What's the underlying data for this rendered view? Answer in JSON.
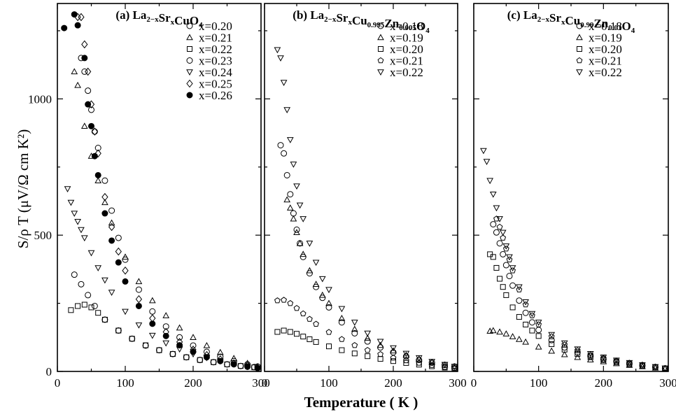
{
  "figure": {
    "ylabel": "S/ρ T (μV/Ω cm K²)",
    "xlabel": "Temperature  ( K )"
  },
  "chart_data": [
    {
      "type": "scatter",
      "title": "(a) La2−xSrxCuO4",
      "title_parts": {
        "tag": "(a)",
        "a": "La",
        "a_sub": "2−x",
        "b": "Sr",
        "b_sub": "x",
        "c": "CuO",
        "c_sub": "4"
      },
      "xlim": [
        0,
        300
      ],
      "ylim": [
        0,
        1350
      ],
      "xticks": [
        0,
        100,
        200,
        300
      ],
      "yticks": [
        0,
        500,
        1000
      ],
      "legend_position": "top-right",
      "series": [
        {
          "name": "x=0.20",
          "marker": "circle",
          "x": [
            25,
            35,
            45,
            55,
            70,
            90,
            110,
            130,
            150,
            170,
            190,
            210,
            230,
            250,
            270,
            290
          ],
          "y": [
            355,
            320,
            280,
            240,
            190,
            150,
            120,
            95,
            78,
            64,
            52,
            42,
            34,
            26,
            20,
            16
          ]
        },
        {
          "name": "x=0.21",
          "marker": "triangle-up",
          "x": [
            25,
            30,
            40,
            50,
            60,
            70,
            80,
            100,
            120,
            140,
            160,
            180,
            200,
            220,
            240,
            260,
            280,
            295
          ],
          "y": [
            1100,
            1050,
            900,
            790,
            700,
            620,
            545,
            420,
            330,
            260,
            205,
            160,
            125,
            95,
            70,
            48,
            30,
            18
          ]
        },
        {
          "name": "x=0.22",
          "marker": "square",
          "x": [
            20,
            30,
            40,
            50,
            60,
            70,
            90,
            110,
            130,
            150,
            170,
            190,
            210,
            230,
            250,
            270,
            290
          ],
          "y": [
            225,
            240,
            245,
            235,
            215,
            190,
            150,
            120,
            96,
            78,
            64,
            52,
            42,
            34,
            26,
            20,
            15
          ]
        },
        {
          "name": "x=0.23",
          "marker": "circle",
          "x": [
            35,
            40,
            45,
            50,
            55,
            60,
            70,
            80,
            90,
            100,
            120,
            140,
            160,
            180,
            200,
            220,
            240,
            260,
            280,
            295
          ],
          "y": [
            1150,
            1100,
            1030,
            960,
            880,
            820,
            700,
            590,
            490,
            410,
            300,
            220,
            165,
            125,
            95,
            72,
            54,
            38,
            26,
            18
          ]
        },
        {
          "name": "x=0.24",
          "marker": "triangle-down",
          "x": [
            15,
            20,
            25,
            30,
            35,
            40,
            50,
            60,
            70,
            80,
            100,
            120,
            140,
            160,
            180,
            200,
            220,
            240,
            260,
            280,
            295
          ],
          "y": [
            670,
            620,
            580,
            550,
            520,
            490,
            435,
            380,
            335,
            290,
            220,
            170,
            132,
            104,
            82,
            64,
            50,
            38,
            27,
            18,
            12
          ]
        },
        {
          "name": "x=0.25",
          "marker": "diamond",
          "x": [
            30,
            35,
            40,
            45,
            50,
            55,
            60,
            70,
            80,
            90,
            100,
            120,
            140,
            160,
            180,
            200,
            220,
            240,
            260,
            280,
            295
          ],
          "y": [
            1300,
            1300,
            1200,
            1100,
            980,
            880,
            800,
            640,
            530,
            440,
            370,
            265,
            195,
            145,
            108,
            80,
            60,
            44,
            30,
            20,
            14
          ]
        },
        {
          "name": "x=0.26",
          "marker": "filled-circle",
          "x": [
            10,
            25,
            30,
            40,
            45,
            50,
            55,
            60,
            70,
            80,
            90,
            100,
            120,
            140,
            160,
            180,
            200,
            220,
            240,
            260,
            280,
            295
          ],
          "y": [
            1260,
            1310,
            1270,
            1150,
            980,
            900,
            790,
            720,
            580,
            480,
            400,
            330,
            240,
            175,
            130,
            96,
            72,
            52,
            38,
            26,
            17,
            12
          ]
        }
      ]
    },
    {
      "type": "scatter",
      "title": "(b) La2−xSrxCu0.995Zn0.005O4",
      "title_parts": {
        "tag": "(b)",
        "a": "La",
        "a_sub": "2−x",
        "b": "Sr",
        "b_sub": "x",
        "c": "Cu",
        "c_sub": "0.995",
        "d": "Zn",
        "d_sub": "0.005",
        "e": "O",
        "e_sub": "4"
      },
      "xlim": [
        0,
        300
      ],
      "ylim": [
        0,
        1350
      ],
      "xticks": [
        0,
        100,
        200,
        300
      ],
      "yticks": [
        0,
        500,
        1000
      ],
      "legend_position": "top-right",
      "series": [
        {
          "name": "x=0.18",
          "marker": "circle",
          "x": [
            25,
            30,
            35,
            40,
            45,
            50,
            55,
            60,
            70,
            80,
            90,
            100,
            120,
            140,
            160,
            180,
            200,
            220,
            240,
            260,
            280,
            295
          ],
          "y": [
            830,
            800,
            720,
            650,
            580,
            520,
            470,
            420,
            360,
            310,
            270,
            235,
            180,
            140,
            110,
            88,
            70,
            55,
            42,
            32,
            24,
            18
          ]
        },
        {
          "name": "x=0.19",
          "marker": "triangle-up",
          "x": [
            35,
            40,
            45,
            50,
            55,
            60,
            70,
            80,
            90,
            100,
            120,
            140,
            160,
            180,
            200,
            220,
            240,
            260,
            280,
            295
          ],
          "y": [
            630,
            600,
            560,
            510,
            470,
            430,
            370,
            320,
            280,
            250,
            195,
            155,
            122,
            96,
            76,
            60,
            46,
            34,
            24,
            18
          ]
        },
        {
          "name": "x=0.20",
          "marker": "square",
          "x": [
            20,
            30,
            40,
            50,
            60,
            70,
            80,
            100,
            120,
            140,
            160,
            180,
            200,
            220,
            240,
            260,
            280,
            295
          ],
          "y": [
            145,
            150,
            145,
            138,
            128,
            118,
            108,
            92,
            78,
            66,
            56,
            46,
            38,
            31,
            25,
            19,
            14,
            10
          ]
        },
        {
          "name": "x=0.21",
          "marker": "pentagon",
          "x": [
            20,
            30,
            40,
            50,
            60,
            70,
            80,
            100,
            120,
            140,
            160,
            180,
            200,
            220,
            240,
            260,
            280,
            295
          ],
          "y": [
            260,
            262,
            250,
            232,
            212,
            192,
            174,
            144,
            118,
            96,
            78,
            63,
            50,
            40,
            31,
            23,
            16,
            12
          ]
        },
        {
          "name": "x=0.22",
          "marker": "triangle-down",
          "x": [
            20,
            25,
            30,
            35,
            40,
            45,
            50,
            55,
            60,
            70,
            80,
            90,
            100,
            120,
            140,
            160,
            180,
            200,
            220,
            240,
            260,
            280,
            295
          ],
          "y": [
            1180,
            1150,
            1060,
            960,
            850,
            760,
            680,
            610,
            560,
            470,
            400,
            340,
            300,
            230,
            180,
            140,
            110,
            86,
            66,
            50,
            36,
            25,
            18
          ]
        }
      ]
    },
    {
      "type": "scatter",
      "title": "(c) La2−xSrxCu0.99Zn0.01O4",
      "title_parts": {
        "tag": "(c)",
        "a": "La",
        "a_sub": "2−x",
        "b": "Sr",
        "b_sub": "x",
        "c": "Cu",
        "c_sub": "0.99",
        "d": "Zn",
        "d_sub": "0.01",
        "e": "O",
        "e_sub": "4"
      },
      "xlim": [
        0,
        300
      ],
      "ylim": [
        0,
        1350
      ],
      "xticks": [
        0,
        100,
        200,
        300
      ],
      "yticks": [
        0,
        500,
        1000
      ],
      "legend_position": "top-right",
      "series": [
        {
          "name": "x=0.18",
          "marker": "circle",
          "x": [
            30,
            35,
            40,
            45,
            50,
            55,
            60,
            70,
            80,
            90,
            100,
            120,
            140,
            160,
            180,
            200,
            220,
            240,
            260,
            280,
            295
          ],
          "y": [
            540,
            510,
            470,
            430,
            390,
            350,
            315,
            260,
            215,
            180,
            152,
            115,
            88,
            70,
            56,
            45,
            36,
            28,
            21,
            15,
            11
          ]
        },
        {
          "name": "x=0.19",
          "marker": "triangle-up",
          "x": [
            25,
            30,
            40,
            50,
            60,
            70,
            80,
            100,
            120,
            140,
            160,
            180,
            200,
            220,
            240,
            260,
            280,
            295
          ],
          "y": [
            148,
            150,
            145,
            138,
            128,
            118,
            108,
            90,
            75,
            62,
            52,
            43,
            36,
            29,
            23,
            18,
            13,
            10
          ]
        },
        {
          "name": "x=0.20",
          "marker": "square",
          "x": [
            25,
            30,
            35,
            40,
            45,
            50,
            60,
            70,
            80,
            90,
            100,
            120,
            140,
            160,
            180,
            200,
            220,
            240,
            260,
            280,
            295
          ],
          "y": [
            430,
            420,
            380,
            340,
            310,
            280,
            235,
            200,
            172,
            150,
            130,
            100,
            80,
            64,
            52,
            42,
            34,
            26,
            20,
            14,
            10
          ]
        },
        {
          "name": "x=0.21",
          "marker": "pentagon",
          "x": [
            35,
            40,
            45,
            50,
            55,
            60,
            70,
            80,
            90,
            100,
            120,
            140,
            160,
            180,
            200,
            220,
            240,
            260,
            280,
            295
          ],
          "y": [
            560,
            530,
            490,
            450,
            410,
            370,
            300,
            245,
            205,
            172,
            128,
            98,
            77,
            61,
            49,
            39,
            31,
            24,
            17,
            12
          ]
        },
        {
          "name": "x=0.22",
          "marker": "triangle-down",
          "x": [
            15,
            20,
            25,
            30,
            35,
            40,
            45,
            50,
            55,
            60,
            70,
            80,
            90,
            100,
            120,
            140,
            160,
            180,
            200,
            220,
            240,
            260,
            280,
            295
          ],
          "y": [
            810,
            770,
            700,
            650,
            600,
            560,
            510,
            460,
            420,
            380,
            310,
            255,
            212,
            180,
            135,
            104,
            82,
            65,
            52,
            41,
            32,
            24,
            17,
            12
          ]
        }
      ]
    }
  ]
}
